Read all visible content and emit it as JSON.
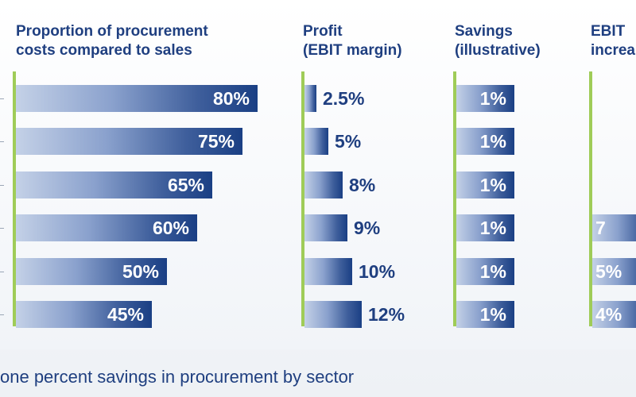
{
  "chart_data": [
    {
      "type": "bar",
      "orientation": "horizontal",
      "title": "Proportion of procurement\ncosts compared to sales",
      "values": [
        80,
        75,
        65,
        60,
        50,
        45
      ],
      "labels": [
        "80%",
        "75%",
        "65%",
        "60%",
        "50%",
        "45%"
      ]
    },
    {
      "type": "bar",
      "orientation": "horizontal",
      "title": "Profit\n(EBIT margin)",
      "values": [
        2.5,
        5,
        8,
        9,
        10,
        12
      ],
      "labels": [
        "2.5%",
        "5%",
        "8%",
        "9%",
        "10%",
        "12%"
      ]
    },
    {
      "type": "bar",
      "orientation": "horizontal",
      "title": "Savings\n(illustrative)",
      "values": [
        1,
        1,
        1,
        1,
        1,
        1
      ],
      "labels": [
        "1%",
        "1%",
        "1%",
        "1%",
        "1%",
        "1%"
      ]
    },
    {
      "type": "bar",
      "orientation": "horizontal",
      "title": "EBIT\nincrea",
      "values": [
        null,
        null,
        null,
        7,
        5,
        4
      ],
      "labels": [
        "",
        "",
        "",
        "7",
        "5%",
        "4%"
      ]
    }
  ],
  "footer": "one percent savings in procurement by sector",
  "colors": {
    "text": "#1f3f80",
    "bar_dark": "#1a3f84",
    "bar_light": "#c4d1e7",
    "axis_line": "#9fcc58"
  }
}
